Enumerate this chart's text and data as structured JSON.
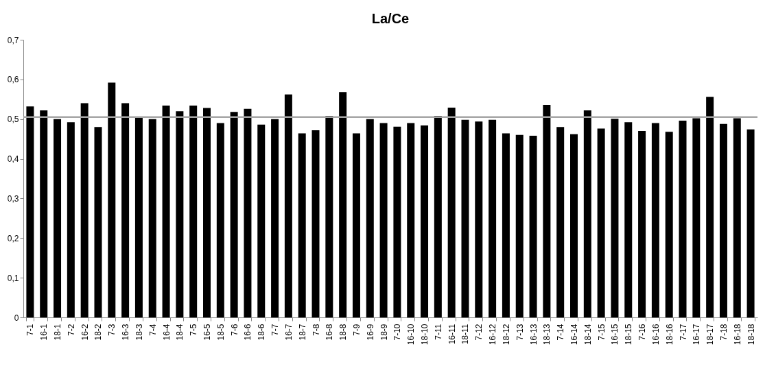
{
  "chart_data": {
    "type": "bar",
    "title": "La/Ce",
    "categories": [
      "7-1",
      "16-1",
      "18-1",
      "7-2",
      "16-2",
      "18-2",
      "7-3",
      "16-3",
      "18-3",
      "7-4",
      "16-4",
      "18-4",
      "7-5",
      "16-5",
      "18-5",
      "7-6",
      "16-6",
      "18-6",
      "7-7",
      "16-7",
      "18-7",
      "7-8",
      "16-8",
      "18-8",
      "7-9",
      "16-9",
      "18-9",
      "7-10",
      "16-10",
      "18-10",
      "7-11",
      "16-11",
      "18-11",
      "7-12",
      "16-12",
      "18-12",
      "7-13",
      "16-13",
      "18-13",
      "7-14",
      "16-14",
      "18-14",
      "7-15",
      "16-15",
      "18-15",
      "7-16",
      "16-16",
      "18-16",
      "7-17",
      "16-17",
      "18-17",
      "7-18",
      "16-18",
      "18-18"
    ],
    "values": [
      0.532,
      0.522,
      0.5,
      0.492,
      0.54,
      0.48,
      0.592,
      0.54,
      0.505,
      0.5,
      0.534,
      0.52,
      0.534,
      0.528,
      0.49,
      0.518,
      0.526,
      0.486,
      0.5,
      0.562,
      0.464,
      0.472,
      0.508,
      0.568,
      0.464,
      0.5,
      0.49,
      0.481,
      0.49,
      0.484,
      0.508,
      0.529,
      0.498,
      0.494,
      0.498,
      0.464,
      0.46,
      0.458,
      0.536,
      0.48,
      0.462,
      0.522,
      0.476,
      0.501,
      0.492,
      0.47,
      0.49,
      0.468,
      0.496,
      0.502,
      0.556,
      0.488,
      0.502,
      0.474
    ],
    "color": "#000000",
    "ylim": [
      0,
      0.7
    ],
    "yticks": [
      {
        "value": 0,
        "label": "0"
      },
      {
        "value": 0.1,
        "label": "0,1"
      },
      {
        "value": 0.2,
        "label": "0,2"
      },
      {
        "value": 0.3,
        "label": "0,3"
      },
      {
        "value": 0.4,
        "label": "0,4"
      },
      {
        "value": 0.5,
        "label": "0,5"
      },
      {
        "value": 0.6,
        "label": "0,6"
      },
      {
        "value": 0.7,
        "label": "0,7"
      }
    ],
    "ref_lines": [
      {
        "axis": "y",
        "value": 0.505,
        "color": "#a6a6a6"
      }
    ],
    "grid": false
  }
}
